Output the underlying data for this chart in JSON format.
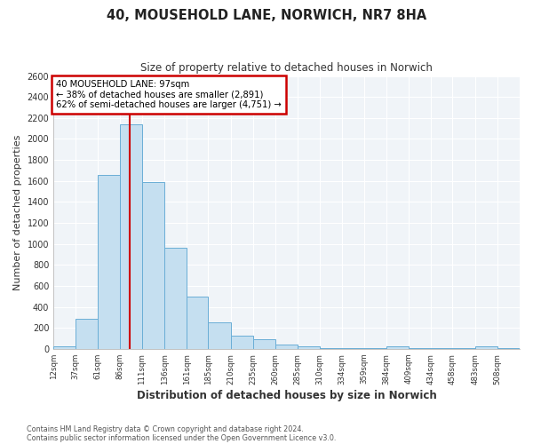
{
  "title": "40, MOUSEHOLD LANE, NORWICH, NR7 8HA",
  "subtitle": "Size of property relative to detached houses in Norwich",
  "xlabel": "Distribution of detached houses by size in Norwich",
  "ylabel": "Number of detached properties",
  "bin_labels": [
    "12sqm",
    "37sqm",
    "61sqm",
    "86sqm",
    "111sqm",
    "136sqm",
    "161sqm",
    "185sqm",
    "210sqm",
    "235sqm",
    "260sqm",
    "285sqm",
    "310sqm",
    "334sqm",
    "359sqm",
    "384sqm",
    "409sqm",
    "434sqm",
    "458sqm",
    "483sqm",
    "508sqm"
  ],
  "bin_edges": [
    12,
    37,
    61,
    86,
    111,
    136,
    161,
    185,
    210,
    235,
    260,
    285,
    310,
    334,
    359,
    384,
    409,
    434,
    458,
    483,
    508
  ],
  "bar_heights": [
    20,
    290,
    1660,
    2140,
    1590,
    960,
    500,
    250,
    125,
    95,
    40,
    25,
    10,
    8,
    5,
    25,
    5,
    5,
    5,
    20,
    5
  ],
  "bar_color": "#c5dff0",
  "bar_edge_color": "#6aaed6",
  "marker_value": 97,
  "marker_color": "#cc0000",
  "annotation_box_text": "40 MOUSEHOLD LANE: 97sqm\n← 38% of detached houses are smaller (2,891)\n62% of semi-detached houses are larger (4,751) →",
  "annotation_box_color": "#cc0000",
  "ylim": [
    0,
    2600
  ],
  "yticks": [
    0,
    200,
    400,
    600,
    800,
    1000,
    1200,
    1400,
    1600,
    1800,
    2000,
    2200,
    2400,
    2600
  ],
  "footnote1": "Contains HM Land Registry data © Crown copyright and database right 2024.",
  "footnote2": "Contains public sector information licensed under the Open Government Licence v3.0.",
  "background_color": "#ffffff",
  "plot_bg_color": "#f0f4f8",
  "grid_color": "#ffffff"
}
